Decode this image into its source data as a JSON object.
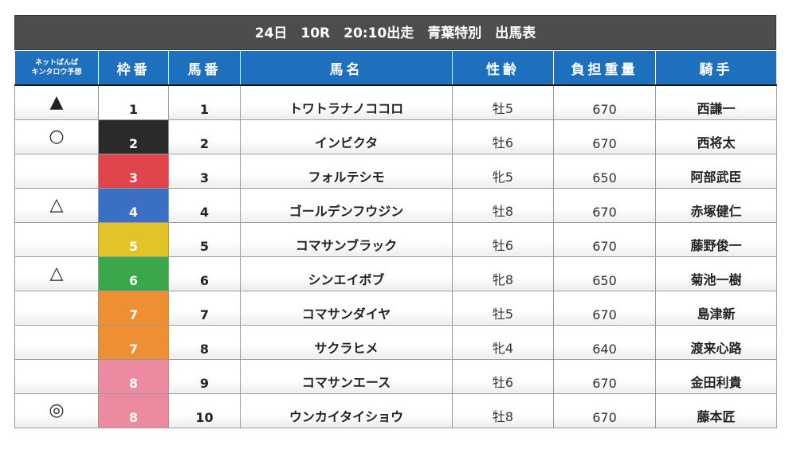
{
  "title": "24日　10R　20:10出走　青葉特別　出馬表",
  "headers": {
    "prediction_line1": "ネットばんば",
    "prediction_line2": "キンタロウ予想",
    "waku": "枠番",
    "umaban": "馬番",
    "name": "馬名",
    "sex_age": "性齢",
    "weight": "負担重量",
    "jockey": "騎手"
  },
  "colors": {
    "title_bg": "#4d4d4d",
    "header_bg": "#1f6fbf",
    "waku_1": "#ffffff",
    "waku_2": "#2a2a2a",
    "waku_3": "#e0454b",
    "waku_4": "#3b6fc4",
    "waku_5": "#e2c42a",
    "waku_6": "#3aa84a",
    "waku_7": "#ef8f33",
    "waku_8": "#ec8aa0"
  },
  "rows": [
    {
      "mark": "▲",
      "waku": "1",
      "umaban": "1",
      "name": "トワトラナノココロ",
      "sex_age": "牡5",
      "weight": "670",
      "jockey": "西謙一"
    },
    {
      "mark": "○",
      "waku": "2",
      "umaban": "2",
      "name": "インビクタ",
      "sex_age": "牡6",
      "weight": "670",
      "jockey": "西将太"
    },
    {
      "mark": "",
      "waku": "3",
      "umaban": "3",
      "name": "フォルテシモ",
      "sex_age": "牝5",
      "weight": "650",
      "jockey": "阿部武臣"
    },
    {
      "mark": "△",
      "waku": "4",
      "umaban": "4",
      "name": "ゴールデンフウジン",
      "sex_age": "牡8",
      "weight": "670",
      "jockey": "赤塚健仁"
    },
    {
      "mark": "",
      "waku": "5",
      "umaban": "5",
      "name": "コマサンブラック",
      "sex_age": "牡6",
      "weight": "670",
      "jockey": "藤野俊一"
    },
    {
      "mark": "△",
      "waku": "6",
      "umaban": "6",
      "name": "シンエイボブ",
      "sex_age": "牝8",
      "weight": "650",
      "jockey": "菊池一樹"
    },
    {
      "mark": "",
      "waku": "7",
      "umaban": "7",
      "name": "コマサンダイヤ",
      "sex_age": "牡5",
      "weight": "670",
      "jockey": "島津新"
    },
    {
      "mark": "",
      "waku": "7",
      "umaban": "8",
      "name": "サクラヒメ",
      "sex_age": "牝4",
      "weight": "640",
      "jockey": "渡来心路"
    },
    {
      "mark": "",
      "waku": "8",
      "umaban": "9",
      "name": "コマサンエース",
      "sex_age": "牡6",
      "weight": "670",
      "jockey": "金田利貴"
    },
    {
      "mark": "◎",
      "waku": "8",
      "umaban": "10",
      "name": "ウンカイタイショウ",
      "sex_age": "牡8",
      "weight": "670",
      "jockey": "藤本匠"
    }
  ]
}
